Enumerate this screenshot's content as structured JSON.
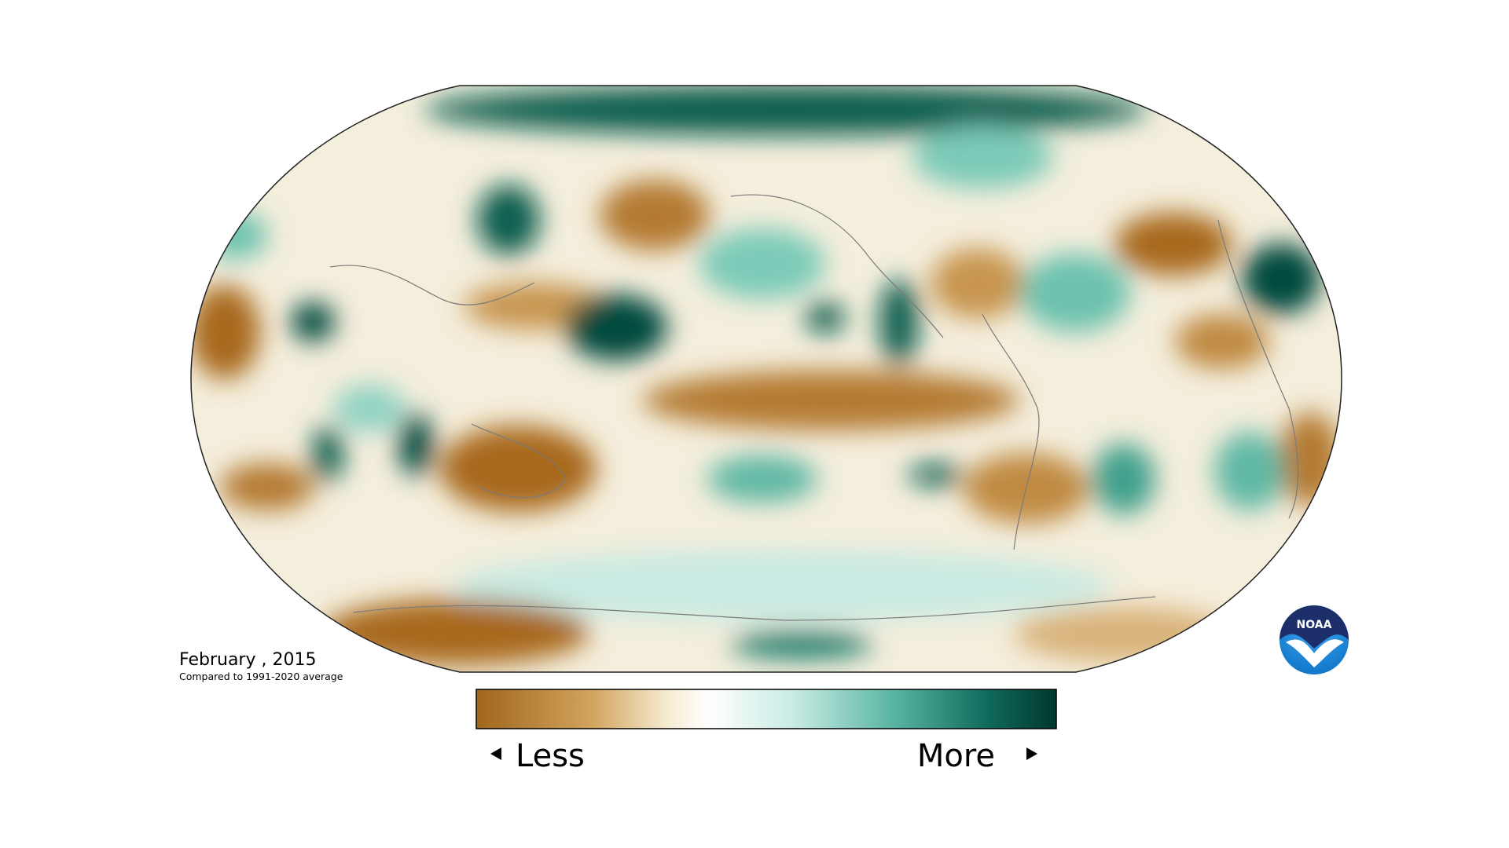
{
  "map": {
    "period": "February , 2015",
    "baseline": "Compared to 1991-2020 average"
  },
  "legend": {
    "low": "Less",
    "high": "More"
  },
  "logo": "NOAA"
}
